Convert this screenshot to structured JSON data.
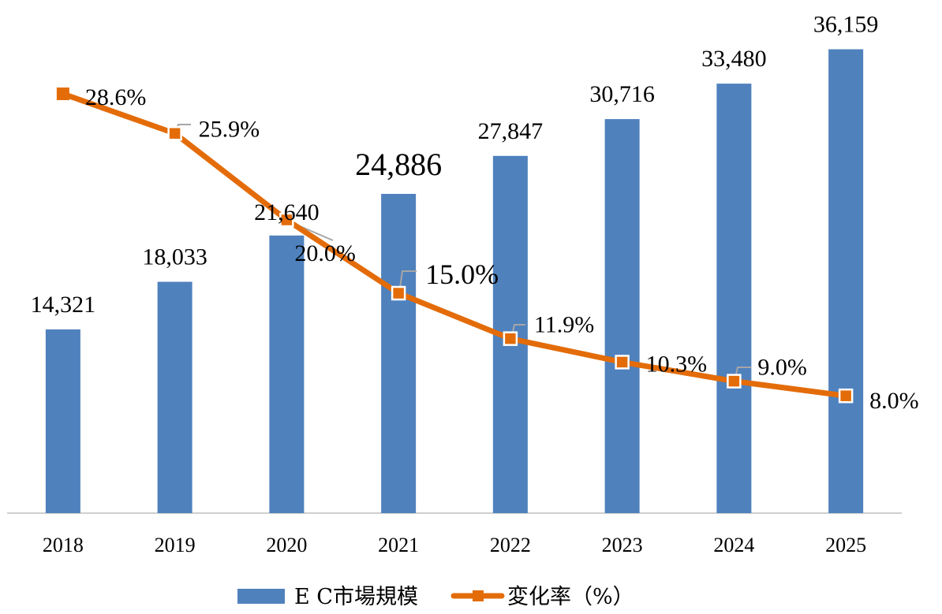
{
  "chart_data": {
    "type": "bar+line",
    "categories": [
      "2018",
      "2019",
      "2020",
      "2021",
      "2022",
      "2023",
      "2024",
      "2025"
    ],
    "series": [
      {
        "name": "E C市場規模",
        "type": "bar",
        "axis": "left",
        "color": "#4F81BD",
        "values": [
          14321,
          18033,
          21640,
          24886,
          27847,
          30716,
          33480,
          36159
        ],
        "labels": [
          "14,321",
          "18,033",
          "21,640",
          "24,886",
          "27,847",
          "30,716",
          "33,480",
          "36,159"
        ]
      },
      {
        "name": "変化率（%）",
        "type": "line",
        "axis": "right",
        "color": "#E36C09",
        "marker": "square",
        "values": [
          28.6,
          25.9,
          20.0,
          15.0,
          11.9,
          10.3,
          9.0,
          8.0
        ],
        "labels": [
          "28.6%",
          "25.9%",
          "20.0%",
          "15.0%",
          "11.9%",
          "10.3%",
          "9.0%",
          "8.0%"
        ]
      }
    ],
    "ylim_left": [
      0,
      40000
    ],
    "ylim_right": [
      0,
      35
    ],
    "grid": false,
    "legend": "bottom"
  }
}
